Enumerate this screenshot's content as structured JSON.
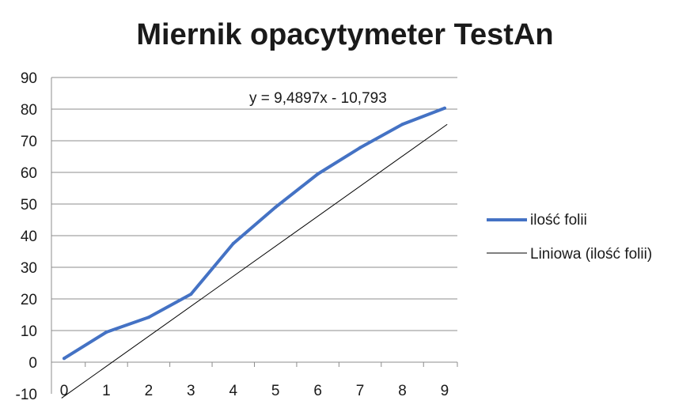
{
  "chart_data": {
    "type": "line",
    "title": "Miernik opacytymeter TestAn",
    "xlabel": "",
    "ylabel": "",
    "x": [
      0,
      1,
      2,
      3,
      4,
      5,
      6,
      7,
      8,
      9
    ],
    "xticks": [
      "0",
      "1",
      "2",
      "3",
      "4",
      "5",
      "6",
      "7",
      "8",
      "9"
    ],
    "yticks": [
      "-10",
      "0",
      "10",
      "20",
      "30",
      "40",
      "50",
      "60",
      "70",
      "80",
      "90"
    ],
    "ylim": [
      -10,
      90
    ],
    "xlim": [
      -0.3,
      9.3
    ],
    "grid": "horizontal",
    "legend_position": "right",
    "series": [
      {
        "name": "ilość folii",
        "color": "#4472c4",
        "values": [
          1.2,
          9.5,
          14.2,
          21.5,
          37.5,
          49.0,
          59.5,
          67.8,
          75.2,
          80.3
        ]
      }
    ],
    "trendline": {
      "name": "Liniowa (ilość folii)",
      "type": "linear",
      "slope": 9.4897,
      "intercept": -10.793,
      "color": "#000000",
      "equation_label": "y = 9,4897x - 10,793"
    }
  }
}
